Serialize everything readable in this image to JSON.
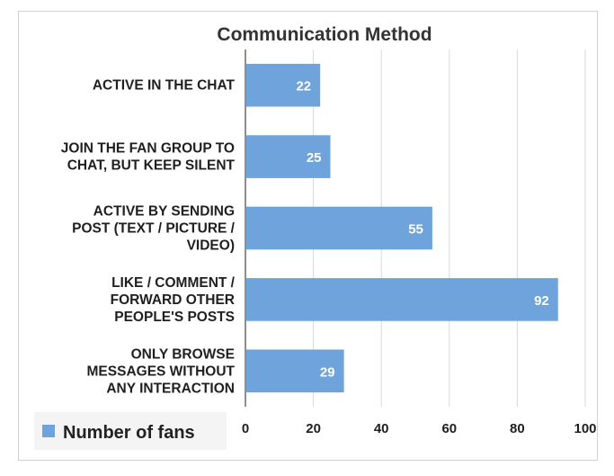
{
  "chart_data": {
    "type": "bar",
    "orientation": "horizontal",
    "title": "Communication Method",
    "categories": [
      [
        "ACTIVE IN THE CHAT"
      ],
      [
        "JOIN THE FAN GROUP TO",
        "CHAT, BUT KEEP SILENT"
      ],
      [
        "ACTIVE BY SENDING",
        "POST (TEXT / PICTURE /",
        "VIDEO)"
      ],
      [
        "LIKE / COMMENT /",
        "FORWARD OTHER",
        "PEOPLE'S POSTS"
      ],
      [
        "ONLY BROWSE",
        "MESSAGES WITHOUT",
        "ANY INTERACTION"
      ]
    ],
    "series": [
      {
        "name": "Number of fans",
        "values": [
          22,
          25,
          55,
          92,
          29
        ],
        "color": "#6fa3dc"
      }
    ],
    "xlim": [
      0,
      100
    ],
    "xticks": [
      "0",
      "20",
      "40",
      "60",
      "80",
      "100"
    ],
    "grid": true,
    "legend_position": "bottom-left"
  }
}
